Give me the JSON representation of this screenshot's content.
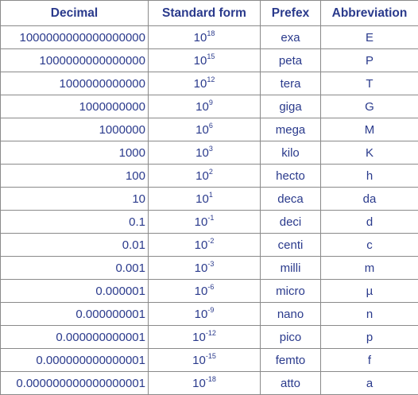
{
  "headers": {
    "decimal": "Decimal",
    "standard_form": "Standard form",
    "prefix": "Prefex",
    "abbreviation": "Abbreviation"
  },
  "rows": [
    {
      "decimal": "1000000000000000000",
      "base": "10",
      "exp": "18",
      "prefix": "exa",
      "abbr": "E"
    },
    {
      "decimal": "1000000000000000",
      "base": "10",
      "exp": "15",
      "prefix": "peta",
      "abbr": "P"
    },
    {
      "decimal": "1000000000000",
      "base": "10",
      "exp": "12",
      "prefix": "tera",
      "abbr": "T"
    },
    {
      "decimal": "1000000000",
      "base": "10",
      "exp": "9",
      "prefix": "giga",
      "abbr": "G"
    },
    {
      "decimal": "1000000",
      "base": "10",
      "exp": "6",
      "prefix": "mega",
      "abbr": "M"
    },
    {
      "decimal": "1000",
      "base": "10",
      "exp": "3",
      "prefix": "kilo",
      "abbr": "K"
    },
    {
      "decimal": "100",
      "base": "10",
      "exp": "2",
      "prefix": "hecto",
      "abbr": "h"
    },
    {
      "decimal": "10",
      "base": "10",
      "exp": "1",
      "prefix": "deca",
      "abbr": "da"
    },
    {
      "decimal": "0.1",
      "base": "10",
      "exp": "-1",
      "prefix": "deci",
      "abbr": "d"
    },
    {
      "decimal": "0.01",
      "base": "10",
      "exp": "-2",
      "prefix": "centi",
      "abbr": "c"
    },
    {
      "decimal": "0.001",
      "base": "10",
      "exp": "-3",
      "prefix": "milli",
      "abbr": "m"
    },
    {
      "decimal": "0.000001",
      "base": "10",
      "exp": "-6",
      "prefix": "micro",
      "abbr": "µ"
    },
    {
      "decimal": "0.000000001",
      "base": "10",
      "exp": "-9",
      "prefix": "nano",
      "abbr": "n"
    },
    {
      "decimal": "0.000000000001",
      "base": "10",
      "exp": "-12",
      "prefix": "pico",
      "abbr": "p"
    },
    {
      "decimal": "0.000000000000001",
      "base": "10",
      "exp": "-15",
      "prefix": "femto",
      "abbr": "f"
    },
    {
      "decimal": "0.000000000000000001",
      "base": "10",
      "exp": "-18",
      "prefix": "atto",
      "abbr": "a"
    }
  ]
}
